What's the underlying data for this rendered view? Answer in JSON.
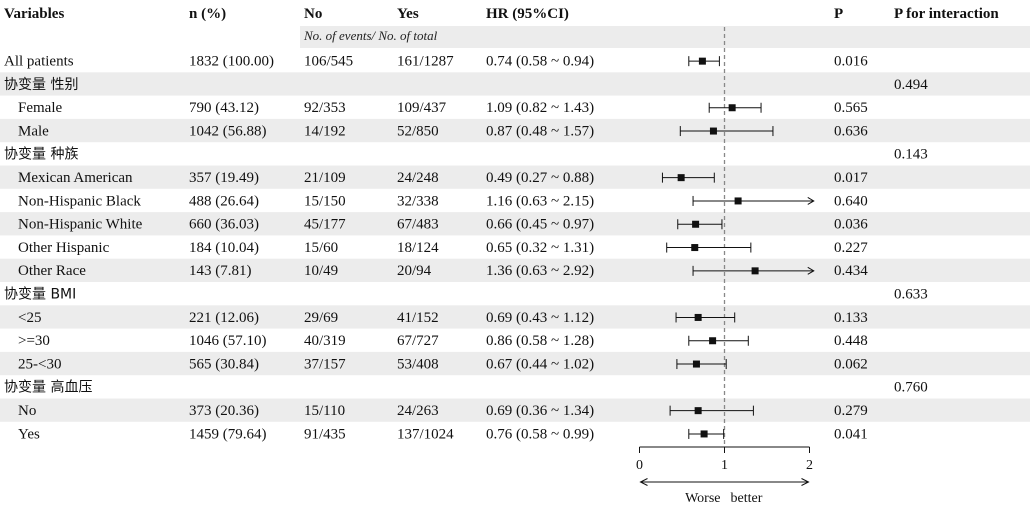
{
  "headers": {
    "variables": "Variables",
    "n_pct": "n (%)",
    "no": "No",
    "yes": "Yes",
    "hr": "HR (95%CI)",
    "p": "P",
    "p_interaction": "P for interaction",
    "subheader": "No. of events/ No. of total"
  },
  "axis": {
    "ticks": [
      "0",
      "1",
      "2"
    ],
    "label_left": "Worse",
    "label_right": "better"
  },
  "colors": {
    "stripe": "#ececec",
    "ink": "#111111",
    "reference_line": "#888888"
  },
  "chart_data": {
    "type": "forest",
    "reference_value": 1,
    "xlim": [
      0,
      2
    ],
    "arrow_cap": 2.05,
    "rows": [
      {
        "kind": "data",
        "label": "All patients",
        "indent": false,
        "n": "1832 (100.00)",
        "no": "106/545",
        "yes": "161/1287",
        "hr_text": "0.74 (0.58 ~ 0.94)",
        "hr": 0.74,
        "lo": 0.58,
        "hi": 0.94,
        "p": "0.016",
        "p_int": ""
      },
      {
        "kind": "group",
        "label": "协变量 性别",
        "p_int": "0.494"
      },
      {
        "kind": "data",
        "label": "Female",
        "indent": true,
        "n": "790 (43.12)",
        "no": "92/353",
        "yes": "109/437",
        "hr_text": "1.09 (0.82 ~ 1.43)",
        "hr": 1.09,
        "lo": 0.82,
        "hi": 1.43,
        "p": "0.565",
        "p_int": ""
      },
      {
        "kind": "data",
        "label": "Male",
        "indent": true,
        "n": "1042 (56.88)",
        "no": "14/192",
        "yes": "52/850",
        "hr_text": "0.87 (0.48 ~ 1.57)",
        "hr": 0.87,
        "lo": 0.48,
        "hi": 1.57,
        "p": "0.636",
        "p_int": ""
      },
      {
        "kind": "group",
        "label": "协变量 种族",
        "p_int": "0.143"
      },
      {
        "kind": "data",
        "label": "Mexican American",
        "indent": true,
        "n": "357 (19.49)",
        "no": "21/109",
        "yes": "24/248",
        "hr_text": "0.49 (0.27 ~ 0.88)",
        "hr": 0.49,
        "lo": 0.27,
        "hi": 0.88,
        "p": "0.017",
        "p_int": ""
      },
      {
        "kind": "data",
        "label": "Non-Hispanic Black",
        "indent": true,
        "n": "488 (26.64)",
        "no": "15/150",
        "yes": "32/338",
        "hr_text": "1.16 (0.63 ~ 2.15)",
        "hr": 1.16,
        "lo": 0.63,
        "hi": 2.15,
        "p": "0.640",
        "p_int": ""
      },
      {
        "kind": "data",
        "label": "Non-Hispanic White",
        "indent": true,
        "n": "660 (36.03)",
        "no": "45/177",
        "yes": "67/483",
        "hr_text": "0.66 (0.45 ~ 0.97)",
        "hr": 0.66,
        "lo": 0.45,
        "hi": 0.97,
        "p": "0.036",
        "p_int": ""
      },
      {
        "kind": "data",
        "label": "Other Hispanic",
        "indent": true,
        "n": "184 (10.04)",
        "no": "15/60",
        "yes": "18/124",
        "hr_text": "0.65 (0.32 ~ 1.31)",
        "hr": 0.65,
        "lo": 0.32,
        "hi": 1.31,
        "p": "0.227",
        "p_int": ""
      },
      {
        "kind": "data",
        "label": "Other Race",
        "indent": true,
        "n": "143 (7.81)",
        "no": "10/49",
        "yes": "20/94",
        "hr_text": "1.36 (0.63 ~ 2.92)",
        "hr": 1.36,
        "lo": 0.63,
        "hi": 2.92,
        "p": "0.434",
        "p_int": ""
      },
      {
        "kind": "group",
        "label": "协变量 BMI",
        "p_int": "0.633"
      },
      {
        "kind": "data",
        "label": "<25",
        "indent": true,
        "n": "221 (12.06)",
        "no": "29/69",
        "yes": "41/152",
        "hr_text": "0.69 (0.43 ~ 1.12)",
        "hr": 0.69,
        "lo": 0.43,
        "hi": 1.12,
        "p": "0.133",
        "p_int": ""
      },
      {
        "kind": "data",
        "label": ">=30",
        "indent": true,
        "n": "1046 (57.10)",
        "no": "40/319",
        "yes": "67/727",
        "hr_text": "0.86 (0.58 ~ 1.28)",
        "hr": 0.86,
        "lo": 0.58,
        "hi": 1.28,
        "p": "0.448",
        "p_int": ""
      },
      {
        "kind": "data",
        "label": "25-<30",
        "indent": true,
        "n": "565 (30.84)",
        "no": "37/157",
        "yes": "53/408",
        "hr_text": "0.67 (0.44 ~ 1.02)",
        "hr": 0.67,
        "lo": 0.44,
        "hi": 1.02,
        "p": "0.062",
        "p_int": ""
      },
      {
        "kind": "group",
        "label": "协变量 高血压",
        "p_int": "0.760"
      },
      {
        "kind": "data",
        "label": "No",
        "indent": true,
        "n": "373 (20.36)",
        "no": "15/110",
        "yes": "24/263",
        "hr_text": "0.69 (0.36 ~ 1.34)",
        "hr": 0.69,
        "lo": 0.36,
        "hi": 1.34,
        "p": "0.279",
        "p_int": ""
      },
      {
        "kind": "data",
        "label": "Yes",
        "indent": true,
        "n": "1459 (79.64)",
        "no": "91/435",
        "yes": "137/1024",
        "hr_text": "0.76 (0.58 ~ 0.99)",
        "hr": 0.76,
        "lo": 0.58,
        "hi": 0.99,
        "p": "0.041",
        "p_int": ""
      }
    ]
  }
}
